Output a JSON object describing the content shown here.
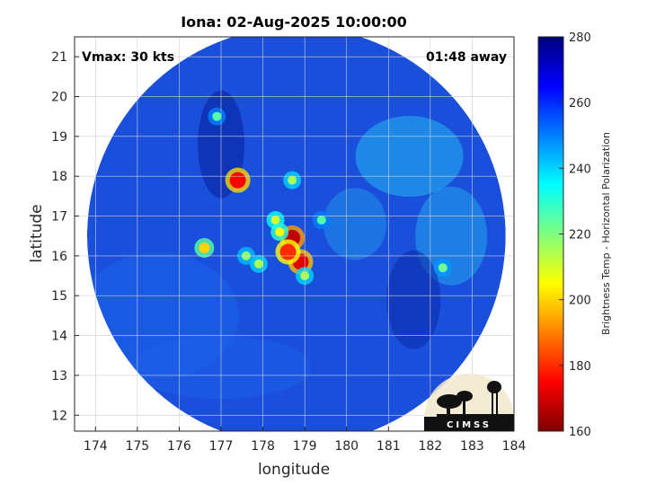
{
  "chart_data": {
    "type": "heatmap",
    "title": "Iona: 02-Aug-2025 10:00:00",
    "xlabel": "longitude",
    "ylabel": "latitude",
    "xlim": [
      173.5,
      184
    ],
    "ylim": [
      11.6,
      21.5
    ],
    "x_ticks": [
      "174",
      "175",
      "176",
      "177",
      "178",
      "179",
      "180",
      "181",
      "182",
      "183",
      "184"
    ],
    "y_ticks": [
      "12",
      "13",
      "14",
      "15",
      "16",
      "17",
      "18",
      "19",
      "20",
      "21"
    ],
    "grid": true,
    "swath": {
      "center_lon": 178.8,
      "center_lat": 16.5,
      "radius_deg": 5.0
    },
    "colorbar": {
      "label": "Brightness Temp - Horizontal Polarization",
      "range": [
        160,
        280
      ],
      "ticks": [
        "280",
        "260",
        "240",
        "220",
        "200",
        "180",
        "160"
      ]
    },
    "annotations": {
      "left": "Vmax: 30 kts",
      "right": "01:48 away"
    },
    "logo_text": "CIMSS",
    "features": [
      {
        "lon": 178.7,
        "lat": 16.45,
        "tb": 168
      },
      {
        "lon": 178.9,
        "lat": 15.85,
        "tb": 172
      },
      {
        "lon": 178.6,
        "lat": 16.1,
        "tb": 180
      },
      {
        "lon": 177.4,
        "lat": 17.9,
        "tb": 175
      },
      {
        "lon": 176.6,
        "lat": 16.2,
        "tb": 200
      },
      {
        "lon": 178.3,
        "lat": 16.9,
        "tb": 210
      },
      {
        "lon": 178.4,
        "lat": 16.6,
        "tb": 205
      },
      {
        "lon": 179.0,
        "lat": 15.5,
        "tb": 215
      },
      {
        "lon": 179.4,
        "lat": 16.9,
        "tb": 225
      },
      {
        "lon": 178.7,
        "lat": 17.9,
        "tb": 215
      },
      {
        "lon": 177.9,
        "lat": 15.8,
        "tb": 215
      },
      {
        "lon": 182.3,
        "lat": 15.7,
        "tb": 222
      },
      {
        "lon": 176.9,
        "lat": 19.5,
        "tb": 225
      },
      {
        "lon": 177.6,
        "lat": 16.0,
        "tb": 218
      }
    ]
  },
  "colors": {
    "ocean_base": "#1a4fdc",
    "outer_ring": "#1b62e8",
    "dry_slot": "#0c2aa8",
    "cloud_light": "#24b8ee"
  }
}
